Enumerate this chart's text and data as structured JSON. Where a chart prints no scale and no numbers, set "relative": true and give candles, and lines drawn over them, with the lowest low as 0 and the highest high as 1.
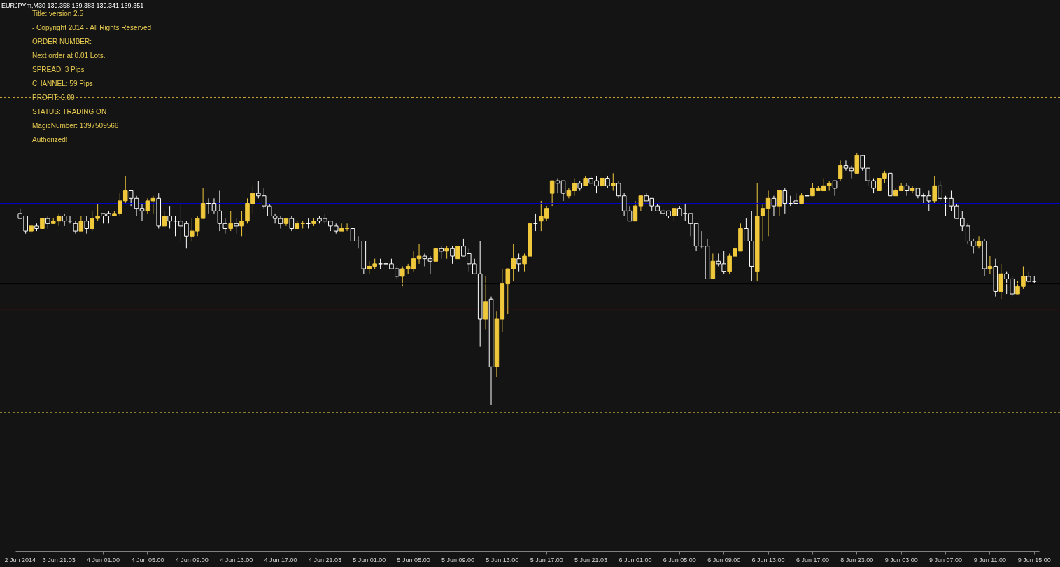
{
  "chart_data": {
    "type": "candlestick",
    "relative": true,
    "title": "EURJPYm,M30  139.358 139.383 139.341 139.351",
    "annotations": [
      "Title: version 2.5",
      "- Copyright 2014 - All Rights Reserved",
      "ORDER NUMBER:",
      "Next order at 0.01 Lots.",
      "SPREAD:  3 Pips",
      "CHANNEL:  59 Pips",
      "PROFIT:  0.00",
      "STATUS:  TRADING ON",
      "MagicNumber:  1397509566",
      "Authorized!"
    ],
    "categories": [
      "2 Jun 2014",
      null,
      null,
      null,
      null,
      null,
      null,
      "3 Jun 21:03",
      null,
      null,
      null,
      null,
      null,
      null,
      null,
      "4 Jun 01:00",
      null,
      null,
      null,
      null,
      null,
      null,
      null,
      "4 Jun 05:00",
      null,
      null,
      null,
      null,
      null,
      null,
      null,
      "4 Jun 09:00",
      null,
      null,
      null,
      null,
      null,
      null,
      null,
      "4 Jun 13:00",
      null,
      null,
      null,
      null,
      null,
      null,
      null,
      "4 Jun 17:00",
      null,
      null,
      null,
      null,
      null,
      null,
      null,
      "4 Jun 21:03",
      null,
      null,
      null,
      null,
      null,
      null,
      null,
      "5 Jun 01:00",
      null,
      null,
      null,
      null,
      null,
      null,
      null,
      "5 Jun 05:00",
      null,
      null,
      null,
      null,
      null,
      null,
      null,
      "5 Jun 09:00",
      null,
      null,
      null,
      null,
      null,
      null,
      null,
      "5 Jun 13:00",
      null,
      null,
      null,
      null,
      null,
      null,
      null,
      "5 Jun 17:00",
      null,
      null,
      null,
      null,
      null,
      null,
      null,
      "5 Jun 21:03",
      null,
      null,
      null,
      null,
      null,
      null,
      null,
      "6 Jun 01:00",
      null,
      null,
      null,
      null,
      null,
      null,
      null,
      "6 Jun 05:00",
      null,
      null,
      null,
      null,
      null,
      null,
      null,
      "6 Jun 09:00",
      null,
      null,
      null,
      null,
      null,
      null,
      null,
      "6 Jun 13:00",
      null,
      null,
      null,
      null,
      null,
      null,
      null,
      "6 Jun 17:00",
      null,
      null,
      null,
      null,
      null,
      null,
      null,
      "8 Jun 23:00",
      null,
      null,
      null,
      null,
      null,
      null,
      null,
      "9 Jun 03:00",
      null,
      null,
      null,
      null,
      null,
      null,
      null,
      "9 Jun 07:00",
      null,
      null,
      null,
      null,
      null,
      null,
      null,
      "9 Jun 11:00",
      null,
      null,
      null,
      null,
      null,
      null,
      null,
      "9 Jun 15:00"
    ],
    "ohlc": [
      [
        0.76,
        0.78,
        0.74,
        0.74
      ],
      [
        0.75,
        0.75,
        0.68,
        0.69
      ],
      [
        0.69,
        0.72,
        0.68,
        0.71
      ],
      [
        0.71,
        0.72,
        0.69,
        0.7
      ],
      [
        0.7,
        0.74,
        0.7,
        0.74
      ],
      [
        0.74,
        0.75,
        0.7,
        0.72
      ],
      [
        0.72,
        0.74,
        0.72,
        0.73
      ],
      [
        0.73,
        0.76,
        0.71,
        0.75
      ],
      [
        0.75,
        0.76,
        0.71,
        0.73
      ],
      [
        0.73,
        0.75,
        0.72,
        0.73
      ],
      [
        0.72,
        0.73,
        0.68,
        0.69
      ],
      [
        0.69,
        0.75,
        0.69,
        0.73
      ],
      [
        0.73,
        0.75,
        0.68,
        0.7
      ],
      [
        0.7,
        0.77,
        0.69,
        0.74
      ],
      [
        0.74,
        0.8,
        0.73,
        0.75
      ],
      [
        0.76,
        0.76,
        0.72,
        0.75
      ],
      [
        0.76,
        0.77,
        0.72,
        0.75
      ],
      [
        0.75,
        0.77,
        0.75,
        0.76
      ],
      [
        0.76,
        0.84,
        0.75,
        0.81
      ],
      [
        0.81,
        0.91,
        0.8,
        0.85
      ],
      [
        0.85,
        0.85,
        0.79,
        0.82
      ],
      [
        0.82,
        0.83,
        0.75,
        0.78
      ],
      [
        0.78,
        0.8,
        0.73,
        0.77
      ],
      [
        0.77,
        0.82,
        0.76,
        0.81
      ],
      [
        0.81,
        0.83,
        0.76,
        0.82
      ],
      [
        0.82,
        0.84,
        0.7,
        0.71
      ],
      [
        0.71,
        0.77,
        0.71,
        0.75
      ],
      [
        0.75,
        0.79,
        0.7,
        0.73
      ],
      [
        0.73,
        0.75,
        0.67,
        0.73
      ],
      [
        0.73,
        0.8,
        0.65,
        0.71
      ],
      [
        0.72,
        0.73,
        0.62,
        0.67
      ],
      [
        0.67,
        0.74,
        0.65,
        0.69
      ],
      [
        0.69,
        0.75,
        0.67,
        0.74
      ],
      [
        0.74,
        0.86,
        0.74,
        0.8
      ],
      [
        0.8,
        0.82,
        0.76,
        0.8
      ],
      [
        0.8,
        0.82,
        0.76,
        0.77
      ],
      [
        0.77,
        0.85,
        0.69,
        0.72
      ],
      [
        0.72,
        0.74,
        0.68,
        0.7
      ],
      [
        0.7,
        0.77,
        0.69,
        0.72
      ],
      [
        0.72,
        0.74,
        0.68,
        0.71
      ],
      [
        0.71,
        0.77,
        0.67,
        0.73
      ],
      [
        0.73,
        0.82,
        0.72,
        0.8
      ],
      [
        0.8,
        0.87,
        0.76,
        0.84
      ],
      [
        0.84,
        0.89,
        0.82,
        0.83
      ],
      [
        0.83,
        0.86,
        0.78,
        0.79
      ],
      [
        0.79,
        0.8,
        0.75,
        0.75
      ],
      [
        0.75,
        0.76,
        0.72,
        0.74
      ],
      [
        0.74,
        0.75,
        0.7,
        0.72
      ],
      [
        0.72,
        0.74,
        0.71,
        0.74
      ],
      [
        0.74,
        0.75,
        0.69,
        0.7
      ],
      [
        0.7,
        0.73,
        0.7,
        0.72
      ],
      [
        0.72,
        0.73,
        0.7,
        0.72
      ],
      [
        0.72,
        0.74,
        0.7,
        0.72
      ],
      [
        0.72,
        0.74,
        0.71,
        0.73
      ],
      [
        0.74,
        0.75,
        0.72,
        0.73
      ],
      [
        0.74,
        0.76,
        0.72,
        0.73
      ],
      [
        0.73,
        0.73,
        0.69,
        0.71
      ],
      [
        0.71,
        0.72,
        0.68,
        0.69
      ],
      [
        0.69,
        0.72,
        0.69,
        0.7
      ],
      [
        0.7,
        0.72,
        0.69,
        0.7
      ],
      [
        0.7,
        0.7,
        0.65,
        0.65
      ],
      [
        0.65,
        0.67,
        0.62,
        0.65
      ],
      [
        0.65,
        0.65,
        0.52,
        0.54
      ],
      [
        0.54,
        0.57,
        0.52,
        0.55
      ],
      [
        0.55,
        0.58,
        0.54,
        0.56
      ],
      [
        0.56,
        0.58,
        0.54,
        0.56
      ],
      [
        0.56,
        0.57,
        0.54,
        0.56
      ],
      [
        0.56,
        0.58,
        0.54,
        0.54
      ],
      [
        0.54,
        0.55,
        0.5,
        0.51
      ],
      [
        0.51,
        0.55,
        0.47,
        0.54
      ],
      [
        0.54,
        0.56,
        0.52,
        0.55
      ],
      [
        0.54,
        0.61,
        0.53,
        0.58
      ],
      [
        0.58,
        0.64,
        0.56,
        0.59
      ],
      [
        0.59,
        0.6,
        0.55,
        0.58
      ],
      [
        0.58,
        0.59,
        0.52,
        0.57
      ],
      [
        0.57,
        0.62,
        0.57,
        0.62
      ],
      [
        0.62,
        0.63,
        0.58,
        0.61
      ],
      [
        0.61,
        0.63,
        0.58,
        0.62
      ],
      [
        0.62,
        0.63,
        0.56,
        0.59
      ],
      [
        0.58,
        0.64,
        0.58,
        0.63
      ],
      [
        0.63,
        0.66,
        0.59,
        0.59
      ],
      [
        0.6,
        0.62,
        0.53,
        0.56
      ],
      [
        0.56,
        0.58,
        0.52,
        0.52
      ],
      [
        0.52,
        0.65,
        0.23,
        0.34
      ],
      [
        0.34,
        0.51,
        0.3,
        0.41
      ],
      [
        0.42,
        0.43,
        0,
        0.15
      ],
      [
        0.15,
        0.37,
        0.11,
        0.34
      ],
      [
        0.34,
        0.54,
        0.29,
        0.48
      ],
      [
        0.48,
        0.54,
        0.36,
        0.54
      ],
      [
        0.54,
        0.64,
        0.49,
        0.58
      ],
      [
        0.58,
        0.6,
        0.53,
        0.56
      ],
      [
        0.56,
        0.6,
        0.53,
        0.59
      ],
      [
        0.59,
        0.73,
        0.58,
        0.72
      ],
      [
        0.72,
        0.76,
        0.69,
        0.72
      ],
      [
        0.73,
        0.81,
        0.69,
        0.75
      ],
      [
        0.74,
        0.79,
        0.73,
        0.78
      ],
      [
        0.84,
        0.89,
        0.79,
        0.89
      ],
      [
        0.89,
        0.9,
        0.84,
        0.88
      ],
      [
        0.89,
        0.89,
        0.81,
        0.84
      ],
      [
        0.83,
        0.86,
        0.82,
        0.85
      ],
      [
        0.85,
        0.9,
        0.83,
        0.88
      ],
      [
        0.88,
        0.89,
        0.85,
        0.86
      ],
      [
        0.87,
        0.91,
        0.87,
        0.9
      ],
      [
        0.9,
        0.91,
        0.88,
        0.88
      ],
      [
        0.89,
        0.91,
        0.84,
        0.87
      ],
      [
        0.87,
        0.91,
        0.86,
        0.9
      ],
      [
        0.9,
        0.91,
        0.86,
        0.87
      ],
      [
        0.87,
        0.92,
        0.85,
        0.88
      ],
      [
        0.88,
        0.89,
        0.82,
        0.83
      ],
      [
        0.83,
        0.84,
        0.75,
        0.77
      ],
      [
        0.77,
        0.79,
        0.73,
        0.73
      ],
      [
        0.73,
        0.81,
        0.73,
        0.79
      ],
      [
        0.79,
        0.83,
        0.77,
        0.83
      ],
      [
        0.83,
        0.84,
        0.81,
        0.81
      ],
      [
        0.82,
        0.82,
        0.77,
        0.79
      ],
      [
        0.79,
        0.8,
        0.77,
        0.77
      ],
      [
        0.77,
        0.78,
        0.75,
        0.76
      ],
      [
        0.77,
        0.77,
        0.74,
        0.75
      ],
      [
        0.75,
        0.78,
        0.73,
        0.78
      ],
      [
        0.78,
        0.79,
        0.75,
        0.75
      ],
      [
        0.76,
        0.8,
        0.73,
        0.76
      ],
      [
        0.76,
        0.76,
        0.67,
        0.72
      ],
      [
        0.72,
        0.72,
        0.61,
        0.63
      ],
      [
        0.63,
        0.69,
        0.62,
        0.63
      ],
      [
        0.63,
        0.66,
        0.5,
        0.5
      ],
      [
        0.5,
        0.6,
        0.5,
        0.57
      ],
      [
        0.57,
        0.6,
        0.55,
        0.56
      ],
      [
        0.56,
        0.61,
        0.52,
        0.53
      ],
      [
        0.53,
        0.6,
        0.52,
        0.59
      ],
      [
        0.59,
        0.64,
        0.59,
        0.62
      ],
      [
        0.61,
        0.72,
        0.61,
        0.7
      ],
      [
        0.7,
        0.74,
        0.65,
        0.65
      ],
      [
        0.65,
        0.77,
        0.49,
        0.55
      ],
      [
        0.53,
        0.88,
        0.49,
        0.75
      ],
      [
        0.75,
        0.8,
        0.65,
        0.78
      ],
      [
        0.78,
        0.85,
        0.67,
        0.82
      ],
      [
        0.82,
        0.83,
        0.75,
        0.79
      ],
      [
        0.79,
        0.85,
        0.75,
        0.85
      ],
      [
        0.85,
        0.86,
        0.76,
        0.8
      ],
      [
        0.8,
        0.83,
        0.79,
        0.8
      ],
      [
        0.81,
        0.84,
        0.8,
        0.8
      ],
      [
        0.8,
        0.84,
        0.8,
        0.83
      ],
      [
        0.83,
        0.85,
        0.8,
        0.83
      ],
      [
        0.83,
        0.88,
        0.83,
        0.86
      ],
      [
        0.85,
        0.87,
        0.85,
        0.86
      ],
      [
        0.85,
        0.9,
        0.85,
        0.87
      ],
      [
        0.87,
        0.89,
        0.85,
        0.88
      ],
      [
        0.89,
        0.89,
        0.83,
        0.86
      ],
      [
        0.9,
        0.97,
        0.89,
        0.95
      ],
      [
        0.95,
        0.97,
        0.93,
        0.94
      ],
      [
        0.94,
        0.95,
        0.9,
        0.93
      ],
      [
        0.92,
        1,
        0.92,
        0.99
      ],
      [
        0.99,
        0.99,
        0.93,
        0.94
      ],
      [
        0.94,
        0.94,
        0.87,
        0.89
      ],
      [
        0.89,
        0.9,
        0.84,
        0.86
      ],
      [
        0.85,
        0.9,
        0.85,
        0.9
      ],
      [
        0.9,
        0.93,
        0.88,
        0.92
      ],
      [
        0.92,
        0.92,
        0.83,
        0.83
      ],
      [
        0.83,
        0.86,
        0.83,
        0.85
      ],
      [
        0.85,
        0.88,
        0.85,
        0.87
      ],
      [
        0.87,
        0.88,
        0.83,
        0.85
      ],
      [
        0.85,
        0.87,
        0.84,
        0.86
      ],
      [
        0.86,
        0.86,
        0.82,
        0.83
      ],
      [
        0.83,
        0.84,
        0.8,
        0.83
      ],
      [
        0.83,
        0.85,
        0.77,
        0.81
      ],
      [
        0.81,
        0.91,
        0.8,
        0.87
      ],
      [
        0.87,
        0.89,
        0.81,
        0.82
      ],
      [
        0.82,
        0.83,
        0.75,
        0.82
      ],
      [
        0.82,
        0.85,
        0.77,
        0.79
      ],
      [
        0.79,
        0.8,
        0.74,
        0.74
      ],
      [
        0.74,
        0.77,
        0.69,
        0.71
      ],
      [
        0.71,
        0.72,
        0.64,
        0.65
      ],
      [
        0.65,
        0.66,
        0.6,
        0.63
      ],
      [
        0.63,
        0.67,
        0.62,
        0.65
      ],
      [
        0.65,
        0.66,
        0.51,
        0.54
      ],
      [
        0.54,
        0.59,
        0.52,
        0.55
      ],
      [
        0.55,
        0.58,
        0.43,
        0.45
      ],
      [
        0.45,
        0.56,
        0.42,
        0.52
      ],
      [
        0.52,
        0.53,
        0.44,
        0.5
      ],
      [
        0.5,
        0.51,
        0.43,
        0.44
      ],
      [
        0.44,
        0.49,
        0.44,
        0.47
      ],
      [
        0.47,
        0.55,
        0.46,
        0.51
      ],
      [
        0.51,
        0.53,
        0.48,
        0.49
      ],
      [
        0.49,
        0.51,
        0.48,
        0.49
      ]
    ],
    "colors": [
      "#ffffff",
      "#ffffff",
      "#f0c83c",
      "#ffffff",
      "#f0c83c",
      "#ffffff",
      "#f0c83c",
      "#f0c83c",
      "#ffffff",
      "#ffffff",
      "#ffffff",
      "#f0c83c",
      "#ffffff",
      "#f0c83c",
      "#f0c83c",
      "#ffffff",
      "#ffffff",
      "#f0c83c",
      "#f0c83c",
      "#f0c83c",
      "#ffffff",
      "#ffffff",
      "#ffffff",
      "#f0c83c",
      "#f0c83c",
      "#ffffff",
      "#f0c83c",
      "#ffffff",
      "#ffffff",
      "#ffffff",
      "#ffffff",
      "#f0c83c",
      "#f0c83c",
      "#f0c83c",
      "#ffffff",
      "#ffffff",
      "#ffffff",
      "#ffffff",
      "#f0c83c",
      "#ffffff",
      "#f0c83c",
      "#f0c83c",
      "#f0c83c",
      "#ffffff",
      "#ffffff",
      "#ffffff",
      "#ffffff",
      "#ffffff",
      "#f0c83c",
      "#ffffff",
      "#f0c83c",
      "#f0c83c",
      "#ffffff",
      "#f0c83c",
      "#ffffff",
      "#ffffff",
      "#ffffff",
      "#ffffff",
      "#f0c83c",
      "#f0c83c",
      "#ffffff",
      "#ffffff",
      "#ffffff",
      "#f0c83c",
      "#f0c83c",
      "#ffffff",
      "#ffffff",
      "#ffffff",
      "#ffffff",
      "#f0c83c",
      "#f0c83c",
      "#f0c83c",
      "#f0c83c",
      "#ffffff",
      "#ffffff",
      "#f0c83c",
      "#ffffff",
      "#f0c83c",
      "#ffffff",
      "#f0c83c",
      "#ffffff",
      "#ffffff",
      "#ffffff",
      "#ffffff",
      "#f0c83c",
      "#ffffff",
      "#f0c83c",
      "#f0c83c",
      "#f0c83c",
      "#f0c83c",
      "#ffffff",
      "#f0c83c",
      "#f0c83c",
      "#ffffff",
      "#f0c83c",
      "#f0c83c",
      "#f0c83c",
      "#ffffff",
      "#ffffff",
      "#f0c83c",
      "#f0c83c",
      "#ffffff",
      "#f0c83c",
      "#ffffff",
      "#ffffff",
      "#f0c83c",
      "#ffffff",
      "#f0c83c",
      "#ffffff",
      "#ffffff",
      "#ffffff",
      "#f0c83c",
      "#f0c83c",
      "#ffffff",
      "#ffffff",
      "#ffffff",
      "#ffffff",
      "#ffffff",
      "#f0c83c",
      "#ffffff",
      "#ffffff",
      "#ffffff",
      "#ffffff",
      "#ffffff",
      "#ffffff",
      "#f0c83c",
      "#ffffff",
      "#ffffff",
      "#f0c83c",
      "#f0c83c",
      "#f0c83c",
      "#ffffff",
      "#ffffff",
      "#f0c83c",
      "#f0c83c",
      "#f0c83c",
      "#ffffff",
      "#f0c83c",
      "#ffffff",
      "#ffffff",
      "#ffffff",
      "#f0c83c",
      "#ffffff",
      "#f0c83c",
      "#f0c83c",
      "#f0c83c",
      "#f0c83c",
      "#ffffff",
      "#f0c83c",
      "#ffffff",
      "#ffffff",
      "#f0c83c",
      "#ffffff",
      "#ffffff",
      "#ffffff",
      "#f0c83c",
      "#f0c83c",
      "#ffffff",
      "#f0c83c",
      "#f0c83c",
      "#ffffff",
      "#f0c83c",
      "#ffffff",
      "#ffffff",
      "#ffffff",
      "#f0c83c",
      "#ffffff",
      "#ffffff",
      "#ffffff",
      "#ffffff",
      "#ffffff",
      "#ffffff",
      "#ffffff",
      "#f0c83c",
      "#ffffff",
      "#f0c83c",
      "#ffffff",
      "#f0c83c",
      "#ffffff",
      "#ffffff",
      "#f0c83c",
      "#f0c83c",
      "#ffffff",
      "#ffffff"
    ],
    "ref_lines": [
      {
        "axis": "y",
        "value": 1.22,
        "color": "#d8b43a",
        "line_style": "dashed"
      },
      {
        "axis": "y",
        "value": 0.8,
        "color": "#0000c8",
        "line_style": "solid"
      },
      {
        "axis": "y",
        "value": 0.48,
        "color": "#000000",
        "line_style": "solid"
      },
      {
        "axis": "y",
        "value": 0.38,
        "color": "#b40000",
        "line_style": "solid"
      },
      {
        "axis": "y",
        "value": -0.03,
        "color": "#d8b43a",
        "line_style": "dashed"
      }
    ],
    "grid": false
  }
}
